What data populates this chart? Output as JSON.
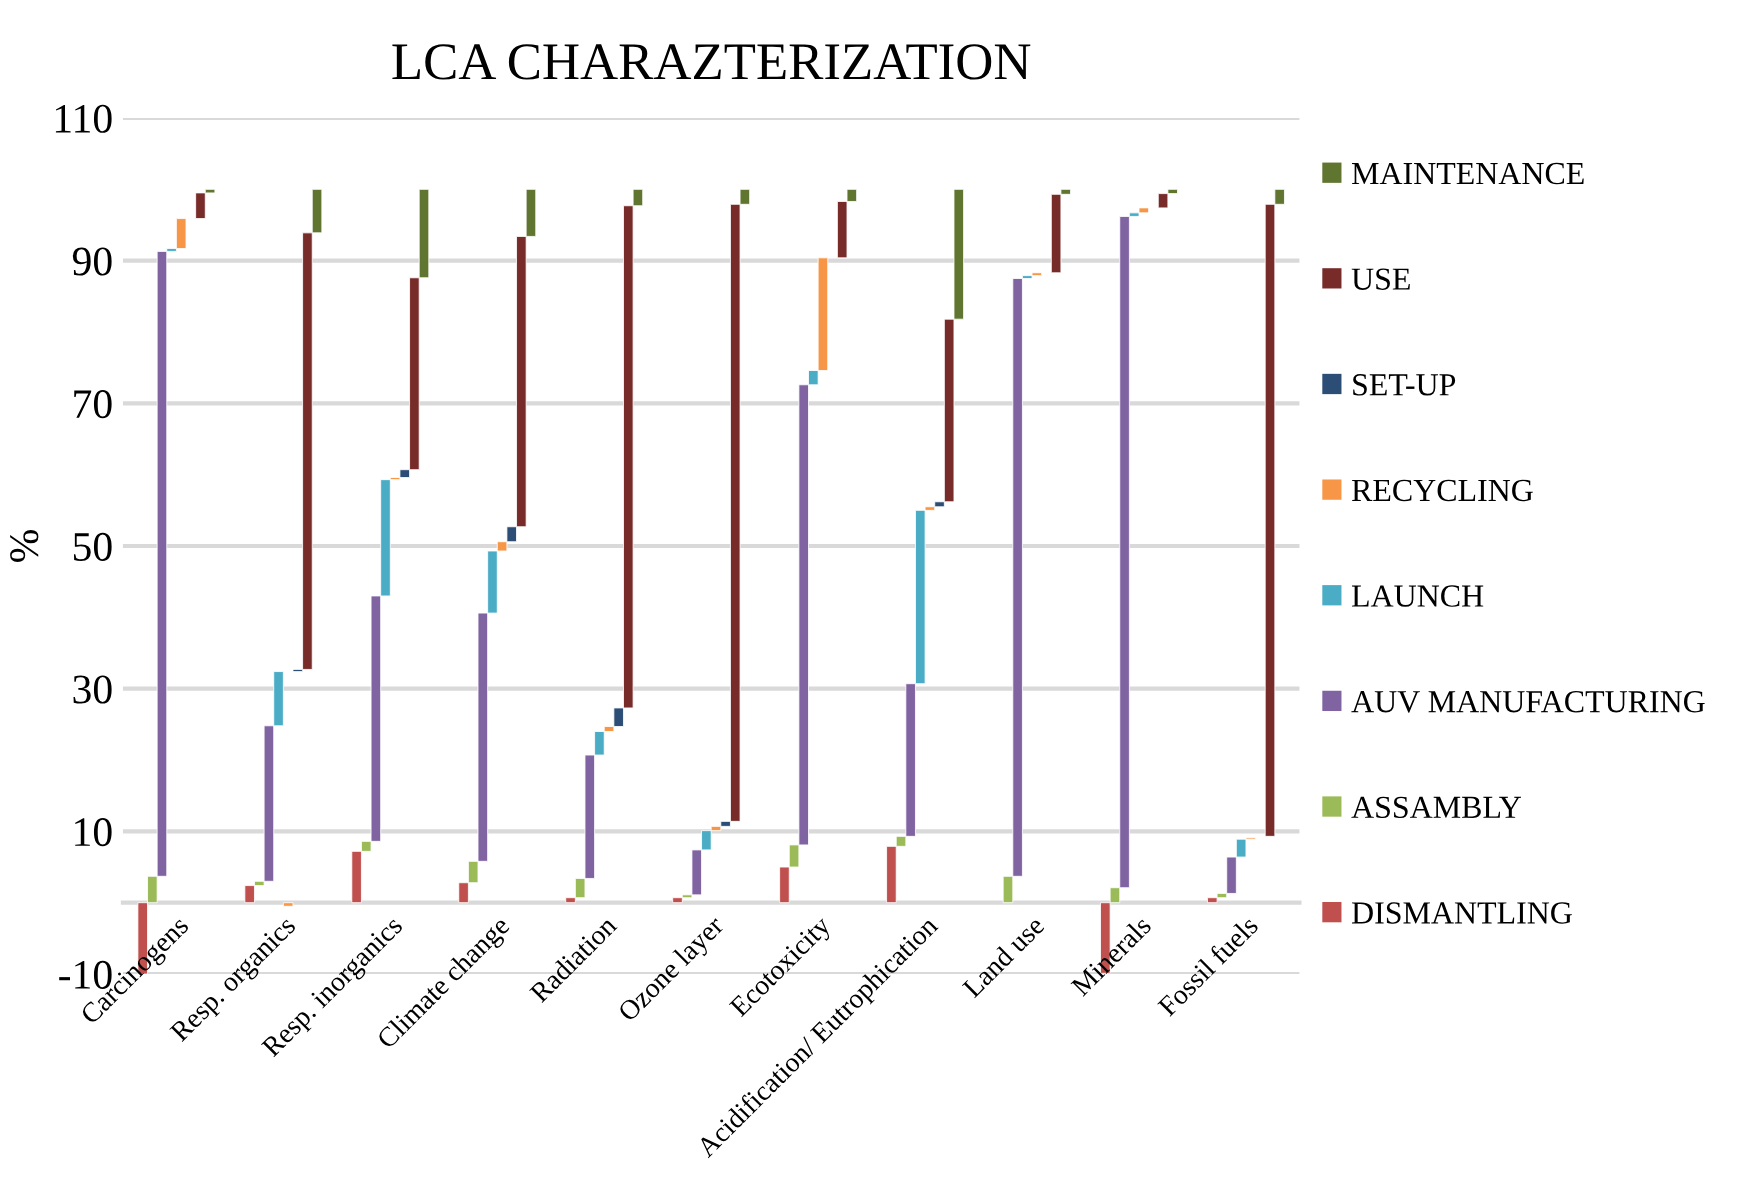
{
  "chart_data": {
    "type": "bar",
    "title": "LCA CHARAZTERIZATION",
    "ylabel": "%",
    "categories": [
      "Carcinogens",
      "Resp. organics",
      "Resp. inorganics",
      "Climate change",
      "Radiation",
      "Ozone layer",
      "Ecotoxicity",
      "Acidification/ Eutrophication",
      "Land use",
      "Minerals",
      "Fossil fuels"
    ],
    "series": [
      {
        "name": "DISMANTLING",
        "color": "#c0504d",
        "base": [
          0,
          0,
          0,
          0,
          0,
          0,
          0,
          0,
          null,
          0,
          0
        ],
        "values": [
          -10,
          2.4,
          7.2,
          2.8,
          0.7,
          0.7,
          5.0,
          7.9,
          null,
          -9.9,
          0.7
        ]
      },
      {
        "name": "ASSAMBLY",
        "color": "#9bbb59",
        "base": [
          0,
          2.4,
          7.2,
          2.8,
          0.7,
          0.7,
          5.0,
          7.9,
          0,
          0,
          0.7
        ],
        "values": [
          3.7,
          0.6,
          1.4,
          3.0,
          2.7,
          0.4,
          3.1,
          1.4,
          3.7,
          2.1,
          0.6
        ]
      },
      {
        "name": "AUV MANUFACTURING",
        "color": "#8064a2",
        "base": [
          3.7,
          3.0,
          8.6,
          5.8,
          3.4,
          1.1,
          8.1,
          9.3,
          3.7,
          2.1,
          1.3
        ],
        "values": [
          87.6,
          21.8,
          34.4,
          34.8,
          17.3,
          6.3,
          64.5,
          21.4,
          83.8,
          94.1,
          5.1
        ]
      },
      {
        "name": "LAUNCH",
        "color": "#4bacc6",
        "base": [
          91.3,
          24.8,
          43.0,
          40.6,
          20.7,
          7.4,
          72.6,
          30.7,
          87.5,
          96.2,
          6.4
        ],
        "values": [
          0.4,
          7.6,
          16.3,
          8.7,
          3.3,
          2.7,
          2.0,
          24.3,
          0.4,
          0.5,
          2.5
        ]
      },
      {
        "name": "RECYCLING",
        "color": "#f79646",
        "base": [
          91.7,
          0,
          59.3,
          49.3,
          24.0,
          10.1,
          74.6,
          55.0,
          87.9,
          96.7,
          8.9
        ],
        "values": [
          4.2,
          -0.5,
          0.3,
          1.3,
          0.7,
          0.6,
          15.8,
          0.5,
          0.4,
          0.7,
          0.2
        ]
      },
      {
        "name": "SET-UP",
        "color": "#2c4d75",
        "base": [
          null,
          32.4,
          59.6,
          50.6,
          24.7,
          10.7,
          null,
          55.5,
          null,
          null,
          null
        ],
        "values": [
          null,
          0.3,
          1.1,
          2.1,
          2.6,
          0.7,
          null,
          0.7,
          null,
          null,
          null
        ]
      },
      {
        "name": "USE",
        "color": "#772c2a",
        "base": [
          95.9,
          32.7,
          60.7,
          52.7,
          27.3,
          11.4,
          90.4,
          56.2,
          88.3,
          97.4,
          9.3
        ],
        "values": [
          3.6,
          61.2,
          26.9,
          40.7,
          70.4,
          86.5,
          7.9,
          25.6,
          11.0,
          2.0,
          88.6
        ]
      },
      {
        "name": "MAINTENANCE",
        "color": "#5f7530",
        "base": [
          99.5,
          93.9,
          87.6,
          93.4,
          97.7,
          97.9,
          98.3,
          81.8,
          99.3,
          99.4,
          97.9
        ],
        "values": [
          0.5,
          6.1,
          12.4,
          6.6,
          2.3,
          2.1,
          1.7,
          18.2,
          0.7,
          0.6,
          2.1
        ]
      }
    ],
    "ylim": [
      -10,
      110
    ],
    "yticks": [
      -10,
      10,
      30,
      50,
      70,
      90,
      110
    ],
    "grid": "y",
    "legend": "right"
  }
}
